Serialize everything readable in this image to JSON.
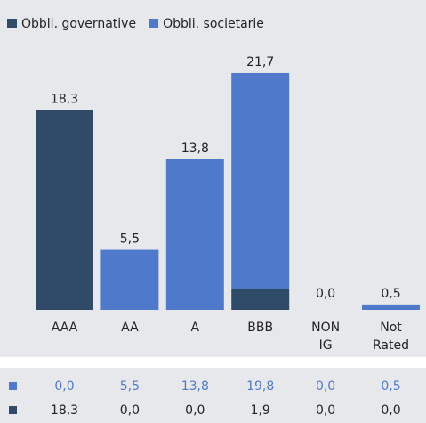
{
  "chart_data": {
    "type": "stacked_bar",
    "categories": [
      "AAA",
      "AA",
      "A",
      "BBB",
      "NON IG",
      "Not Rated"
    ],
    "series": [
      {
        "name": "Obbli. governative",
        "color": "#2f4b68",
        "values": [
          18.3,
          0,
          0,
          1.9,
          0,
          0
        ],
        "value_labels": [
          "18,3",
          "0,0",
          "0,0",
          "1,9",
          "0,0",
          "0,0"
        ]
      },
      {
        "name": "Obbli. societarie",
        "color": "#4f7acc",
        "values": [
          0,
          5.5,
          13.8,
          19.8,
          0,
          0.5
        ],
        "value_labels": [
          "0,0",
          "5,5",
          "13,8",
          "19,8",
          "0,0",
          "0,5"
        ]
      }
    ],
    "totals": [
      18.3,
      5.5,
      13.8,
      21.7,
      0,
      0.5
    ],
    "total_labels": [
      "18,3",
      "5,5",
      "13,8",
      "21,7",
      "0,0",
      "0,5"
    ],
    "ylim": [
      0,
      25
    ],
    "legend": "top-left"
  }
}
